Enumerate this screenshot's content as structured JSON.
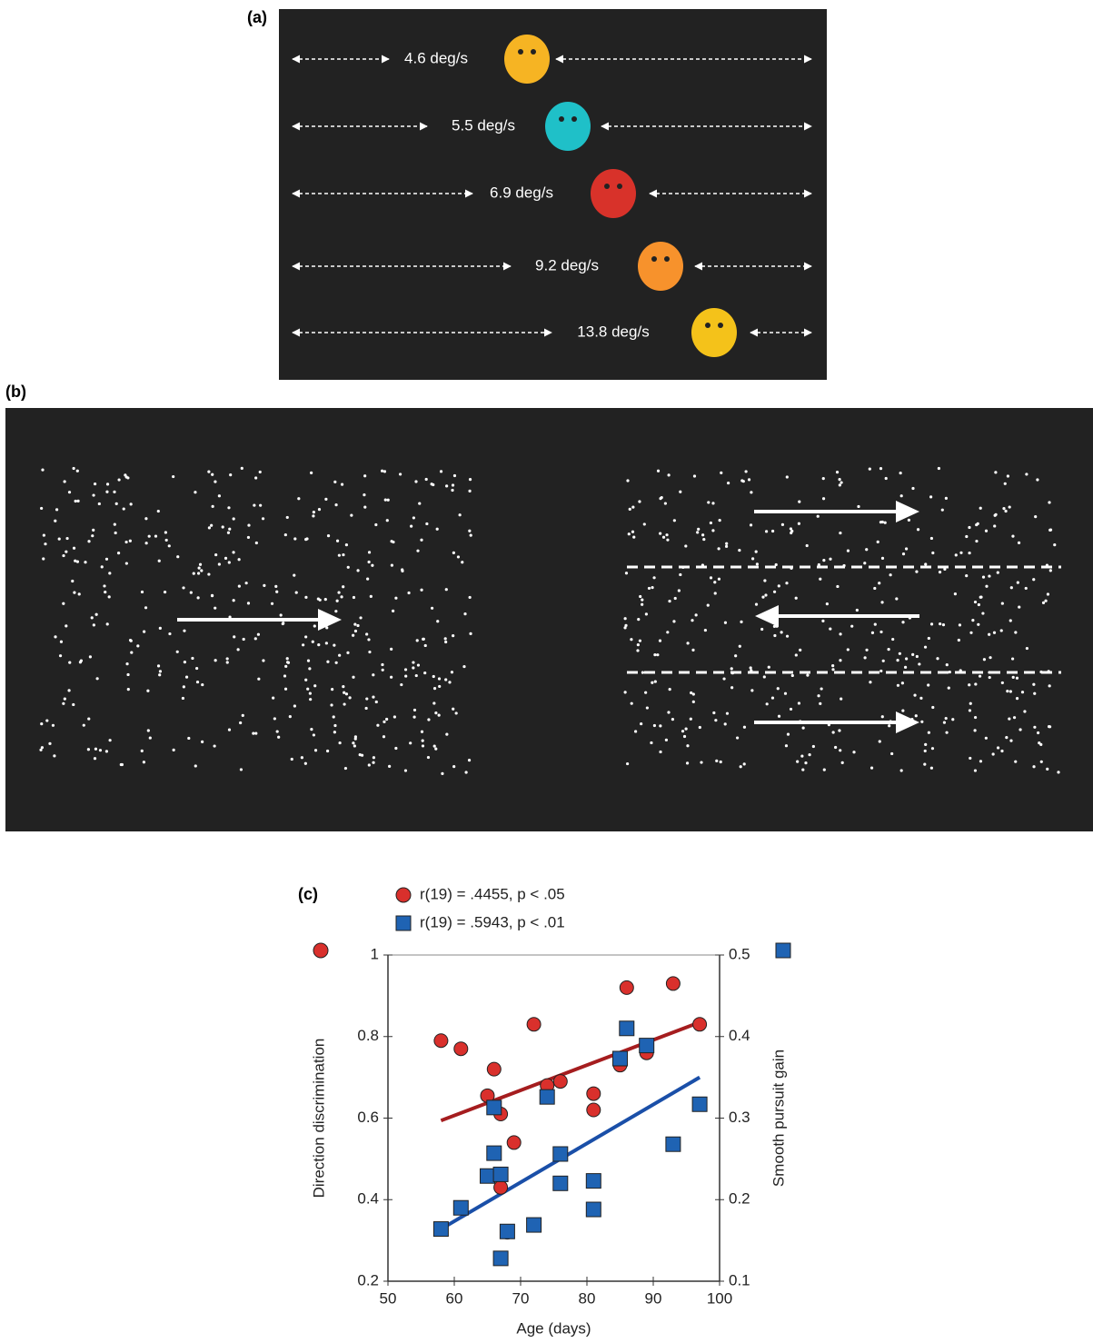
{
  "panel_a": {
    "label": "(a)",
    "speeds": [
      "4.6 deg/s",
      "5.5 deg/s",
      "6.9 deg/s",
      "9.2 deg/s",
      "13.8 deg/s"
    ]
  },
  "panel_b": {
    "label": "(b)"
  },
  "chart_data": {
    "type": "scatter",
    "panel_label": "(c)",
    "x_label": "Age (days)",
    "y_label": "Direction discrimination",
    "y2_label": "Smooth pursuit gain",
    "xlim": [
      50,
      100
    ],
    "xticks": [
      50,
      60,
      70,
      80,
      90,
      100
    ],
    "ylim": [
      0.2,
      1
    ],
    "yticks": [
      0.2,
      0.4,
      0.6,
      0.8,
      1
    ],
    "y2lim": [
      0.1,
      0.5
    ],
    "y2ticks": [
      0.1,
      0.2,
      0.3,
      0.4,
      0.5
    ],
    "series": [
      {
        "name": "r(19) = .4455, p < .05",
        "color": "#d9302c",
        "line_color": "#a51d1f",
        "marker": "circle",
        "x": [
          58,
          61,
          66,
          65,
          67,
          69,
          67,
          68,
          72,
          74,
          76,
          81,
          81,
          86,
          85,
          89,
          93,
          97
        ],
        "values": [
          0.79,
          0.77,
          0.72,
          0.655,
          0.61,
          0.54,
          0.43,
          0.32,
          0.83,
          0.68,
          0.69,
          0.66,
          0.62,
          0.92,
          0.73,
          0.76,
          0.93,
          0.83
        ],
        "fit": {
          "x": [
            58,
            97
          ],
          "values": [
            0.594,
            0.835
          ]
        }
      },
      {
        "name": "r(19) = .5943, p < .01",
        "color": "#1f63b3",
        "line_color": "#1a4fa8",
        "marker": "square",
        "axis": "y2",
        "x": [
          58,
          61,
          66,
          65,
          66,
          67,
          67,
          68,
          72,
          74,
          76,
          76,
          81,
          81,
          85,
          86,
          89,
          93,
          97
        ],
        "values": [
          0.164,
          0.19,
          0.313,
          0.229,
          0.257,
          0.231,
          0.128,
          0.161,
          0.169,
          0.326,
          0.256,
          0.22,
          0.223,
          0.188,
          0.373,
          0.41,
          0.389,
          0.268,
          0.317
        ],
        "fit": {
          "x": [
            58,
            97
          ],
          "values": [
            0.164,
            0.35
          ]
        }
      }
    ]
  }
}
